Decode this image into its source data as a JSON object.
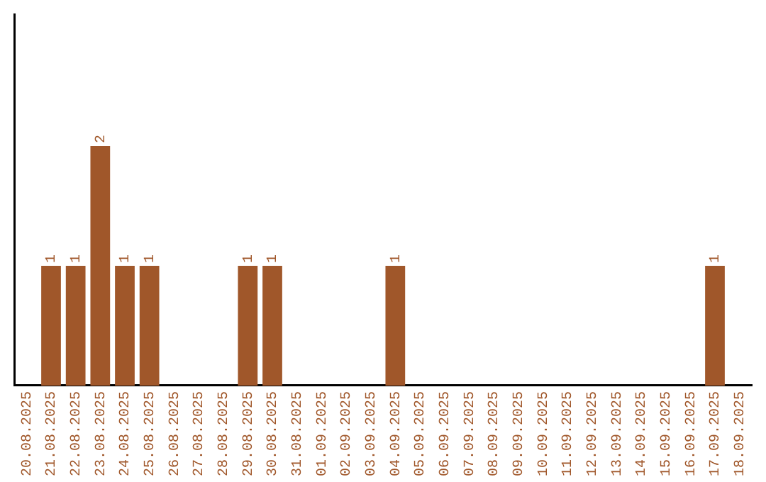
{
  "chart_data": {
    "type": "bar",
    "categories": [
      "20.08.2025",
      "21.08.2025",
      "22.08.2025",
      "23.08.2025",
      "24.08.2025",
      "25.08.2025",
      "26.08.2025",
      "27.08.2025",
      "28.08.2025",
      "29.08.2025",
      "30.08.2025",
      "31.08.2025",
      "01.09.2025",
      "02.09.2025",
      "03.09.2025",
      "04.09.2025",
      "05.09.2025",
      "06.09.2025",
      "07.09.2025",
      "08.09.2025",
      "09.09.2025",
      "10.09.2025",
      "11.09.2025",
      "12.09.2025",
      "13.09.2025",
      "14.09.2025",
      "15.09.2025",
      "16.09.2025",
      "17.09.2025",
      "18.09.2025"
    ],
    "values": [
      0,
      1,
      1,
      2,
      1,
      1,
      0,
      0,
      0,
      1,
      1,
      0,
      0,
      0,
      0,
      1,
      0,
      0,
      0,
      0,
      0,
      0,
      0,
      0,
      0,
      0,
      0,
      0,
      1,
      0
    ],
    "value_labels": [
      null,
      "1",
      "1",
      "2",
      "1",
      "1",
      null,
      null,
      null,
      "1",
      "1",
      null,
      null,
      null,
      null,
      "1",
      null,
      null,
      null,
      null,
      null,
      null,
      null,
      null,
      null,
      null,
      null,
      null,
      "1",
      null
    ],
    "color": "#a0572a",
    "ylim": [
      0,
      3.1
    ],
    "tick_labels": "x",
    "grid": false,
    "legend": false
  }
}
